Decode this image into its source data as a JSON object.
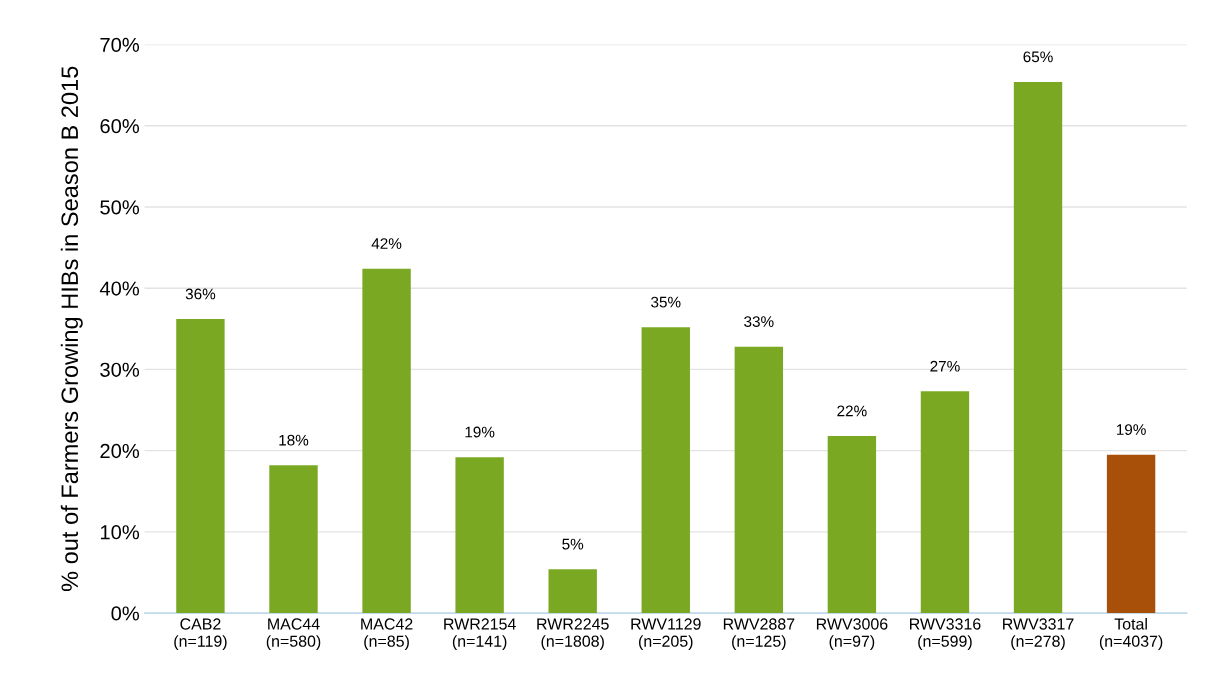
{
  "chart_data": {
    "type": "bar",
    "ylabel": "% out of Farmers Growing HIBs in Season B 2015",
    "categories": [
      "CAB2\n(n=119)",
      "MAC44\n(n=580)",
      "MAC42\n(n=85)",
      "RWR2154\n(n=141)",
      "RWR2245\n(n=1808)",
      "RWV1129\n(n=205)",
      "RWV2887\n(n=125)",
      "RWV3006\n(n=97)",
      "RWV3316\n(n=599)",
      "RWV3317\n(n=278)",
      "Total\n(n=4037)"
    ],
    "values": [
      36.2,
      18.2,
      42.4,
      19.2,
      5.4,
      35.2,
      32.8,
      21.8,
      27.3,
      65.4,
      19.5
    ],
    "value_labels": [
      "36%",
      "18%",
      "42%",
      "19%",
      "5%",
      "35%",
      "33%",
      "22%",
      "27%",
      "65%",
      "19%"
    ],
    "colors": [
      "#7aa823",
      "#7aa823",
      "#7aa823",
      "#7aa823",
      "#7aa823",
      "#7aa823",
      "#7aa823",
      "#7aa823",
      "#7aa823",
      "#7aa823",
      "#a8500a"
    ],
    "ylim": [
      0,
      70
    ],
    "yticks": [
      {
        "value": 0,
        "label": "0%"
      },
      {
        "value": 10,
        "label": "10%"
      },
      {
        "value": 20,
        "label": "20%"
      },
      {
        "value": 30,
        "label": "30%"
      },
      {
        "value": 40,
        "label": "40%"
      },
      {
        "value": 50,
        "label": "50%"
      },
      {
        "value": 60,
        "label": "60%"
      },
      {
        "value": 70,
        "label": "70%"
      }
    ],
    "grid": "y"
  }
}
